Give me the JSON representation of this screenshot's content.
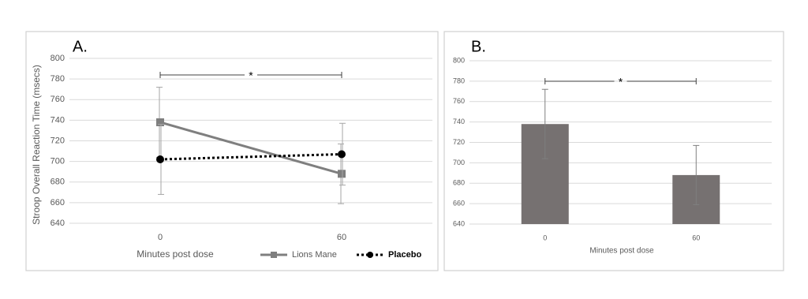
{
  "chart_data": [
    {
      "type": "line",
      "label": "A.",
      "x_label": "Minutes post dose",
      "y_label": "Stroop Overall Reaction Time (msecs)",
      "categories": [
        "0",
        "60"
      ],
      "series": [
        {
          "name": "Lions Mane",
          "color": "#7f7f7f",
          "line_style": "solid",
          "marker": "square",
          "values": [
            738,
            688
          ],
          "errors": [
            34,
            29
          ]
        },
        {
          "name": "Placebo",
          "color": "#000000",
          "line_style": "dotted",
          "marker": "circle",
          "values": [
            702,
            707
          ],
          "errors": [
            34,
            30
          ]
        }
      ],
      "ylim": [
        640,
        800
      ],
      "yticks": [
        640,
        660,
        680,
        700,
        720,
        740,
        760,
        780,
        800
      ],
      "grid": true,
      "legend": "bottom",
      "annotation": "*"
    },
    {
      "type": "bar",
      "label": "B.",
      "x_label": "Minutes post dose",
      "categories": [
        "0",
        "60"
      ],
      "values": [
        738,
        688
      ],
      "errors": [
        34,
        29
      ],
      "color": "#767171",
      "ylim": [
        640,
        800
      ],
      "yticks": [
        640,
        660,
        680,
        700,
        720,
        740,
        760,
        780,
        800
      ],
      "grid": true,
      "annotation": "*"
    }
  ]
}
